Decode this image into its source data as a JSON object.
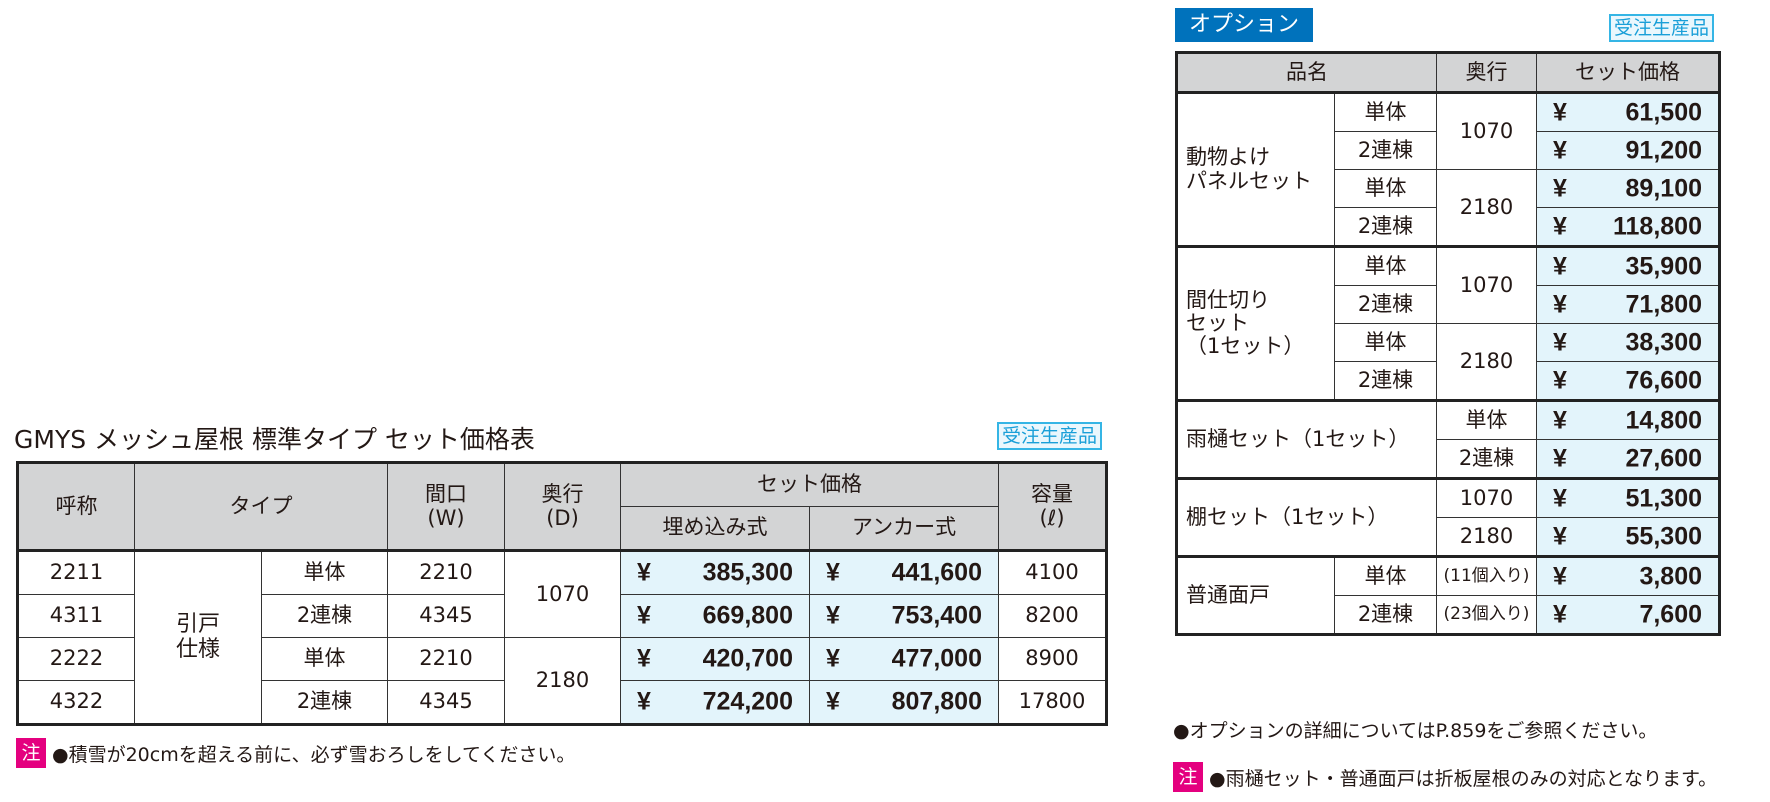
{
  "main_table": {
    "title": "GMYS メッシュ屋根 標準タイプ セット価格表",
    "badge": "受注生産品",
    "headers": {
      "name": "呼称",
      "type": "タイプ",
      "width": "間口\n(W)",
      "depth": "奥行\n(D)",
      "price": "セット価格",
      "price_a": "埋め込み式",
      "price_b": "アンカー式",
      "capacity": "容量\n(ℓ)"
    },
    "type_group": "引戸\n仕様",
    "rows": [
      {
        "name": "2211",
        "type": "単体",
        "w": "2210",
        "d": "1070",
        "a": "385,300",
        "b": "441,600",
        "cap": "4100"
      },
      {
        "name": "4311",
        "type": "2連棟",
        "w": "4345",
        "d": "1070",
        "a": "669,800",
        "b": "753,400",
        "cap": "8200"
      },
      {
        "name": "2222",
        "type": "単体",
        "w": "2210",
        "d": "2180",
        "a": "420,700",
        "b": "477,000",
        "cap": "8900"
      },
      {
        "name": "4322",
        "type": "2連棟",
        "w": "4345",
        "d": "2180",
        "a": "724,200",
        "b": "807,800",
        "cap": "17800"
      }
    ],
    "yen": "¥",
    "note_label": "注",
    "note": "●積雪が20cmを超える前に、必ず雪おろしをしてください。"
  },
  "option_table": {
    "title": "オプション",
    "badge": "受注生産品",
    "headers": {
      "name": "品名",
      "depth": "奥行",
      "price": "セット価格"
    },
    "groups": [
      {
        "name": "動物よけ\nパネルセット",
        "rows": [
          {
            "type": "単体",
            "d": "1070",
            "p": "61,500"
          },
          {
            "type": "2連棟",
            "d": "1070",
            "p": "91,200"
          },
          {
            "type": "単体",
            "d": "2180",
            "p": "89,100"
          },
          {
            "type": "2連棟",
            "d": "2180",
            "p": "118,800"
          }
        ]
      },
      {
        "name": "間仕切り\nセット\n（1セット）",
        "rows": [
          {
            "type": "単体",
            "d": "1070",
            "p": "35,900"
          },
          {
            "type": "2連棟",
            "d": "1070",
            "p": "71,800"
          },
          {
            "type": "単体",
            "d": "2180",
            "p": "38,300"
          },
          {
            "type": "2連棟",
            "d": "2180",
            "p": "76,600"
          }
        ]
      },
      {
        "name": "雨樋セット（1セット）",
        "rows": [
          {
            "d": "単体",
            "p": "14,800"
          },
          {
            "d": "2連棟",
            "p": "27,600"
          }
        ]
      },
      {
        "name": "棚セット（1セット）",
        "rows": [
          {
            "d": "1070",
            "p": "51,300"
          },
          {
            "d": "2180",
            "p": "55,300"
          }
        ]
      },
      {
        "name": "普通面戸",
        "rows": [
          {
            "type": "単体",
            "d": "(11個入り)",
            "p": "3,800"
          },
          {
            "type": "2連棟",
            "d": "(23個入り)",
            "p": "7,600"
          }
        ]
      }
    ],
    "note1": "●オプションの詳細についてはP.859をご参照ください。",
    "note_label": "注",
    "note2": "●雨樋セット・普通面戸は折板屋根のみの対応となります。"
  },
  "colors": {
    "header_bg": "#d3d4d5",
    "price_bg": "#e3f4fb",
    "option_badge": "#0072bc",
    "note_label": "#e4007f",
    "order_badge": "#35b5e5"
  }
}
